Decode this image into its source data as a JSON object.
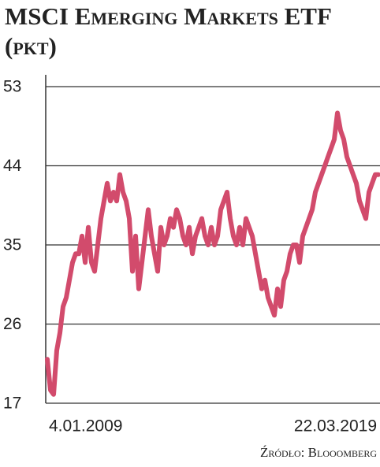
{
  "chart_data": {
    "type": "line",
    "title": "MSCI Emerging Markets ETF (pkt)",
    "source": "Źródło: Blooomberg",
    "categories": [
      "4.01.2009",
      null,
      null,
      null,
      null,
      null,
      null,
      null,
      null,
      null,
      null,
      null,
      null,
      null,
      null,
      null,
      null,
      null,
      null,
      null,
      null,
      null,
      null,
      null,
      null,
      null,
      null,
      null,
      null,
      null,
      null,
      null,
      null,
      null,
      null,
      null,
      null,
      null,
      null,
      null,
      null,
      null,
      null,
      null,
      null,
      null,
      null,
      null,
      null,
      null,
      null,
      null,
      null,
      null,
      null,
      null,
      null,
      null,
      null,
      null,
      null,
      null,
      null,
      null,
      null,
      null,
      null,
      null,
      null,
      null,
      null,
      null,
      null,
      null,
      null,
      null,
      null,
      null,
      null,
      null,
      null,
      null,
      null,
      null,
      null,
      null,
      null,
      null,
      null,
      null,
      null,
      null,
      null,
      null,
      null,
      null,
      null,
      null,
      null,
      null,
      null,
      null,
      null,
      null,
      null,
      "22.03.2019"
    ],
    "values": [
      22,
      18.5,
      18,
      23,
      25,
      28,
      29,
      31,
      33,
      34,
      34,
      36,
      33,
      37,
      33,
      32,
      35,
      38,
      40,
      42,
      40,
      41,
      40,
      43,
      41,
      40,
      38,
      32,
      36,
      30,
      33,
      36,
      39,
      36,
      34,
      32,
      37,
      35,
      36,
      38,
      37,
      39,
      38,
      36,
      35,
      37,
      34,
      36,
      37,
      38,
      36,
      35,
      37,
      35,
      36,
      39,
      40,
      41,
      38,
      36,
      35,
      37,
      35,
      38,
      37,
      36,
      34,
      32,
      30,
      31,
      29,
      28,
      27,
      30,
      28,
      31,
      32,
      34,
      35,
      35,
      33,
      36,
      37,
      38,
      39,
      41,
      42,
      43,
      44,
      45,
      46,
      47,
      50,
      48,
      47,
      45,
      44,
      43,
      42,
      40,
      39,
      38,
      41,
      42,
      43,
      43
    ],
    "color": "#d24b6c",
    "ylim": [
      17,
      53
    ],
    "yticks": [
      17,
      26,
      35,
      44,
      53
    ],
    "grid": true
  }
}
